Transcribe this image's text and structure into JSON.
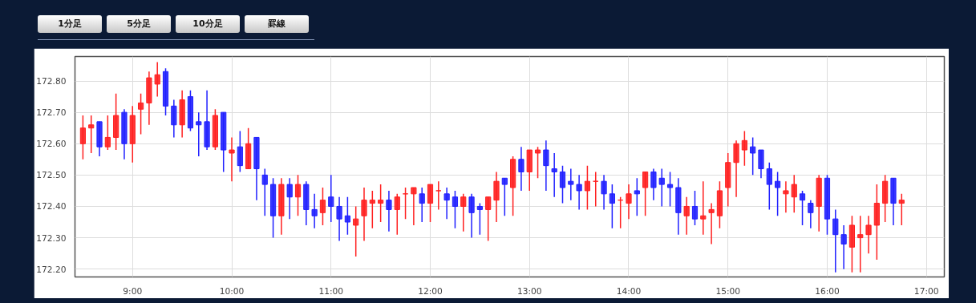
{
  "chart_data": {
    "type": "candlestick",
    "annotations": [
      "1分足",
      "5分足",
      "10分足",
      "罫線"
    ],
    "x": [
      8.5,
      8.5833,
      8.6667,
      8.75,
      8.8333,
      8.9167,
      9,
      9.0833,
      9.1667,
      9.25,
      9.3333,
      9.4167,
      9.5,
      9.5833,
      9.6667,
      9.75,
      9.8333,
      9.9167,
      10,
      10.0833,
      10.1667,
      10.25,
      10.3333,
      10.4167,
      10.5,
      10.5833,
      10.6667,
      10.75,
      10.8333,
      10.9167,
      11,
      11.0833,
      11.1667,
      11.25,
      11.3333,
      11.4167,
      11.5,
      11.5833,
      11.6667,
      11.75,
      11.8333,
      11.9167,
      12,
      12.0833,
      12.1667,
      12.25,
      12.3333,
      12.4167,
      12.5,
      12.5833,
      12.6667,
      12.75,
      12.8333,
      12.9167,
      13,
      13.0833,
      13.1667,
      13.25,
      13.3333,
      13.4167,
      13.5,
      13.5833,
      13.6667,
      13.75,
      13.8333,
      13.9167,
      14,
      14.0833,
      14.1667,
      14.25,
      14.3333,
      14.4167,
      14.5,
      14.5833,
      14.6667,
      14.75,
      14.8333,
      14.9167,
      15,
      15.0833,
      15.1667,
      15.25,
      15.3333,
      15.4167,
      15.5,
      15.5833,
      15.6667,
      15.75,
      15.8333,
      15.9167,
      16,
      16.0833,
      16.1667,
      16.25,
      16.3333,
      16.4167,
      16.5,
      16.5833,
      16.6667,
      16.75
    ],
    "ohlc": [
      [
        172.6,
        172.69,
        172.55,
        172.65
      ],
      [
        172.65,
        172.69,
        172.57,
        172.66
      ],
      [
        172.67,
        172.67,
        172.56,
        172.59
      ],
      [
        172.59,
        172.69,
        172.58,
        172.62
      ],
      [
        172.62,
        172.76,
        172.58,
        172.69
      ],
      [
        172.7,
        172.71,
        172.55,
        172.6
      ],
      [
        172.6,
        172.72,
        172.54,
        172.69
      ],
      [
        172.71,
        172.76,
        172.63,
        172.73
      ],
      [
        172.73,
        172.83,
        172.66,
        172.81
      ],
      [
        172.79,
        172.86,
        172.75,
        172.82
      ],
      [
        172.83,
        172.84,
        172.69,
        172.72
      ],
      [
        172.72,
        172.74,
        172.62,
        172.66
      ],
      [
        172.66,
        172.77,
        172.62,
        172.74
      ],
      [
        172.75,
        172.77,
        172.64,
        172.65
      ],
      [
        172.67,
        172.7,
        172.56,
        172.66
      ],
      [
        172.67,
        172.77,
        172.58,
        172.59
      ],
      [
        172.59,
        172.71,
        172.58,
        172.69
      ],
      [
        172.7,
        172.7,
        172.51,
        172.58
      ],
      [
        172.57,
        172.62,
        172.48,
        172.58
      ],
      [
        172.59,
        172.64,
        172.51,
        172.53
      ],
      [
        172.52,
        172.65,
        172.52,
        172.6
      ],
      [
        172.62,
        172.62,
        172.42,
        172.52
      ],
      [
        172.5,
        172.52,
        172.37,
        172.47
      ],
      [
        172.47,
        172.49,
        172.3,
        172.37
      ],
      [
        172.37,
        172.49,
        172.31,
        172.47
      ],
      [
        172.47,
        172.49,
        172.36,
        172.43
      ],
      [
        172.43,
        172.5,
        172.37,
        172.47
      ],
      [
        172.47,
        172.48,
        172.34,
        172.39
      ],
      [
        172.39,
        172.44,
        172.33,
        172.37
      ],
      [
        172.38,
        172.46,
        172.34,
        172.42
      ],
      [
        172.43,
        172.5,
        172.35,
        172.4
      ],
      [
        172.4,
        172.43,
        172.29,
        172.36
      ],
      [
        172.37,
        172.43,
        172.31,
        172.35
      ],
      [
        172.34,
        172.4,
        172.24,
        172.36
      ],
      [
        172.37,
        172.46,
        172.29,
        172.42
      ],
      [
        172.41,
        172.45,
        172.33,
        172.42
      ],
      [
        172.41,
        172.47,
        172.35,
        172.42
      ],
      [
        172.42,
        172.45,
        172.32,
        172.39
      ],
      [
        172.39,
        172.44,
        172.31,
        172.43
      ],
      [
        172.44,
        172.46,
        172.36,
        172.44
      ],
      [
        172.44,
        172.46,
        172.34,
        172.46
      ],
      [
        172.44,
        172.46,
        172.35,
        172.41
      ],
      [
        172.41,
        172.47,
        172.35,
        172.47
      ],
      [
        172.45,
        172.48,
        172.39,
        172.45
      ],
      [
        172.44,
        172.46,
        172.36,
        172.42
      ],
      [
        172.43,
        172.45,
        172.33,
        172.4
      ],
      [
        172.4,
        172.44,
        172.32,
        172.43
      ],
      [
        172.43,
        172.44,
        172.3,
        172.38
      ],
      [
        172.4,
        172.41,
        172.31,
        172.39
      ],
      [
        172.39,
        172.43,
        172.29,
        172.43
      ],
      [
        172.42,
        172.51,
        172.35,
        172.48
      ],
      [
        172.49,
        172.49,
        172.37,
        172.47
      ],
      [
        172.46,
        172.56,
        172.37,
        172.55
      ],
      [
        172.55,
        172.59,
        172.45,
        172.51
      ],
      [
        172.51,
        172.58,
        172.45,
        172.58
      ],
      [
        172.57,
        172.59,
        172.49,
        172.58
      ],
      [
        172.58,
        172.61,
        172.45,
        172.53
      ],
      [
        172.52,
        172.57,
        172.43,
        172.51
      ],
      [
        172.51,
        172.53,
        172.41,
        172.46
      ],
      [
        172.48,
        172.52,
        172.42,
        172.47
      ],
      [
        172.47,
        172.5,
        172.39,
        172.45
      ],
      [
        172.45,
        172.53,
        172.39,
        172.48
      ],
      [
        172.48,
        172.51,
        172.4,
        172.48
      ],
      [
        172.48,
        172.5,
        172.39,
        172.44
      ],
      [
        172.44,
        172.47,
        172.33,
        172.41
      ],
      [
        172.42,
        172.43,
        172.33,
        172.42
      ],
      [
        172.41,
        172.47,
        172.36,
        172.44
      ],
      [
        172.45,
        172.49,
        172.37,
        172.44
      ],
      [
        172.46,
        172.51,
        172.37,
        172.51
      ],
      [
        172.51,
        172.52,
        172.42,
        172.46
      ],
      [
        172.49,
        172.52,
        172.4,
        172.47
      ],
      [
        172.47,
        172.51,
        172.4,
        172.46
      ],
      [
        172.46,
        172.49,
        172.31,
        172.38
      ],
      [
        172.37,
        172.43,
        172.31,
        172.4
      ],
      [
        172.4,
        172.45,
        172.34,
        172.36
      ],
      [
        172.36,
        172.48,
        172.31,
        172.37
      ],
      [
        172.38,
        172.41,
        172.28,
        172.39
      ],
      [
        172.37,
        172.48,
        172.33,
        172.45
      ],
      [
        172.46,
        172.57,
        172.4,
        172.54
      ],
      [
        172.54,
        172.61,
        172.43,
        172.6
      ],
      [
        172.58,
        172.64,
        172.53,
        172.61
      ],
      [
        172.59,
        172.62,
        172.5,
        172.57
      ],
      [
        172.58,
        172.58,
        172.49,
        172.52
      ],
      [
        172.52,
        172.54,
        172.39,
        172.47
      ],
      [
        172.48,
        172.51,
        172.37,
        172.46
      ],
      [
        172.44,
        172.48,
        172.38,
        172.45
      ],
      [
        172.43,
        172.5,
        172.38,
        172.47
      ],
      [
        172.44,
        172.45,
        172.34,
        172.42
      ],
      [
        172.41,
        172.42,
        172.33,
        172.38
      ],
      [
        172.4,
        172.5,
        172.32,
        172.49
      ],
      [
        172.49,
        172.5,
        172.31,
        172.36
      ],
      [
        172.36,
        172.39,
        172.19,
        172.31
      ],
      [
        172.31,
        172.34,
        172.2,
        172.28
      ],
      [
        172.27,
        172.37,
        172.19,
        172.34
      ],
      [
        172.3,
        172.37,
        172.19,
        172.31
      ],
      [
        172.31,
        172.37,
        172.25,
        172.34
      ],
      [
        172.34,
        172.47,
        172.23,
        172.41
      ],
      [
        172.41,
        172.5,
        172.35,
        172.48
      ],
      [
        172.49,
        172.49,
        172.34,
        172.41
      ],
      [
        172.41,
        172.44,
        172.34,
        172.42
      ]
    ],
    "colors": [
      "#ff2020",
      "#ff2020",
      "#2020ff",
      "#ff2020",
      "#ff2020",
      "#2020ff",
      "#ff2020",
      "#ff2020",
      "#ff2020",
      "#ff2020",
      "#2020ff",
      "#2020ff",
      "#ff2020",
      "#2020ff",
      "#2020ff",
      "#2020ff",
      "#ff2020",
      "#2020ff",
      "#ff2020",
      "#2020ff",
      "#ff2020",
      "#2020ff",
      "#2020ff",
      "#2020ff",
      "#ff2020",
      "#2020ff",
      "#ff2020",
      "#2020ff",
      "#2020ff",
      "#ff2020",
      "#2020ff",
      "#2020ff",
      "#2020ff",
      "#ff2020",
      "#ff2020",
      "#ff2020",
      "#ff2020",
      "#2020ff",
      "#ff2020",
      "#ff2020",
      "#ff2020",
      "#2020ff",
      "#ff2020",
      "#ff2020",
      "#2020ff",
      "#2020ff",
      "#ff2020",
      "#2020ff",
      "#2020ff",
      "#ff2020",
      "#ff2020",
      "#2020ff",
      "#ff2020",
      "#2020ff",
      "#ff2020",
      "#ff2020",
      "#2020ff",
      "#2020ff",
      "#2020ff",
      "#2020ff",
      "#2020ff",
      "#ff2020",
      "#ff2020",
      "#2020ff",
      "#2020ff",
      "#ff2020",
      "#ff2020",
      "#2020ff",
      "#ff2020",
      "#2020ff",
      "#2020ff",
      "#2020ff",
      "#2020ff",
      "#ff2020",
      "#2020ff",
      "#ff2020",
      "#ff2020",
      "#ff2020",
      "#ff2020",
      "#ff2020",
      "#ff2020",
      "#2020ff",
      "#2020ff",
      "#2020ff",
      "#2020ff",
      "#ff2020",
      "#ff2020",
      "#2020ff",
      "#2020ff",
      "#ff2020",
      "#2020ff",
      "#2020ff",
      "#2020ff",
      "#ff2020",
      "#ff2020",
      "#ff2020",
      "#ff2020",
      "#ff2020",
      "#2020ff",
      "#ff2020"
    ],
    "xlim": [
      8.42,
      17.18
    ],
    "ylim": [
      172.175,
      172.878
    ],
    "xticks": [
      {
        "value": 9,
        "label": "9:00"
      },
      {
        "value": 10,
        "label": "10:00"
      },
      {
        "value": 11,
        "label": "11:00"
      },
      {
        "value": 12,
        "label": "12:00"
      },
      {
        "value": 13,
        "label": "13:00"
      },
      {
        "value": 14,
        "label": "14:00"
      },
      {
        "value": 15,
        "label": "15:00"
      },
      {
        "value": 16,
        "label": "16:00"
      },
      {
        "value": 17,
        "label": "17:00"
      }
    ],
    "yticks": [
      {
        "value": 172.2,
        "label": "172.20"
      },
      {
        "value": 172.3,
        "label": "172.30"
      },
      {
        "value": 172.4,
        "label": "172.40"
      },
      {
        "value": 172.5,
        "label": "172.50"
      },
      {
        "value": 172.6,
        "label": "172.60"
      },
      {
        "value": 172.7,
        "label": "172.70"
      },
      {
        "value": 172.8,
        "label": "172.80"
      }
    ],
    "grid": true
  }
}
